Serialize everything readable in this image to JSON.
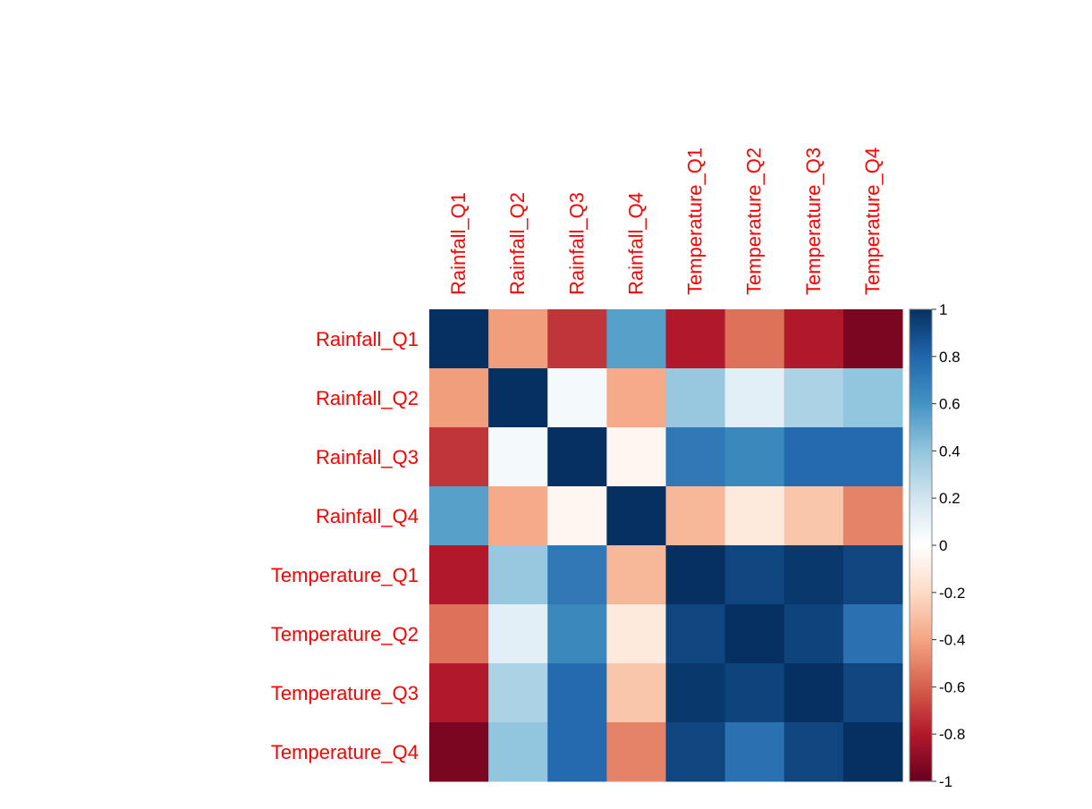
{
  "chart_data": {
    "type": "heatmap",
    "title": "",
    "xlabel": "",
    "ylabel": "",
    "label_color": "#FF0000",
    "variables": [
      "Rainfall_Q1",
      "Rainfall_Q2",
      "Rainfall_Q3",
      "Rainfall_Q4",
      "Temperature_Q1",
      "Temperature_Q2",
      "Temperature_Q3",
      "Temperature_Q4"
    ],
    "matrix": [
      [
        1.0,
        -0.42,
        -0.72,
        0.55,
        -0.8,
        -0.55,
        -0.8,
        -0.95
      ],
      [
        -0.42,
        1.0,
        0.05,
        -0.38,
        0.38,
        0.12,
        0.32,
        0.4
      ],
      [
        -0.72,
        0.05,
        1.0,
        -0.05,
        0.72,
        0.65,
        0.78,
        0.78
      ],
      [
        0.55,
        -0.38,
        -0.05,
        1.0,
        -0.33,
        -0.12,
        -0.28,
        -0.5
      ],
      [
        -0.8,
        0.38,
        0.72,
        -0.33,
        1.0,
        0.92,
        0.97,
        0.92
      ],
      [
        -0.55,
        0.12,
        0.65,
        -0.12,
        0.92,
        1.0,
        0.93,
        0.75
      ],
      [
        -0.8,
        0.32,
        0.78,
        -0.28,
        0.97,
        0.93,
        1.0,
        0.92
      ],
      [
        -0.95,
        0.4,
        0.78,
        -0.5,
        0.92,
        0.75,
        0.92,
        1.0
      ]
    ],
    "colorbar": {
      "min": -1,
      "max": 1,
      "ticks": [
        1,
        0.8,
        0.6,
        0.4,
        0.2,
        0,
        -0.2,
        -0.4,
        -0.6,
        -0.8,
        -1
      ],
      "tick_labels": [
        "1",
        "0.8",
        "0.6",
        "0.4",
        "0.2",
        "0",
        "-0.2",
        "-0.4",
        "-0.6",
        "-0.8",
        "-1"
      ]
    },
    "palette": [
      "#67001F",
      "#B2182B",
      "#D6604D",
      "#F4A582",
      "#FDDBC7",
      "#FFFFFF",
      "#D1E5F0",
      "#92C5DE",
      "#4393C3",
      "#2166AC",
      "#053061"
    ],
    "grid": false,
    "legend": "right"
  }
}
